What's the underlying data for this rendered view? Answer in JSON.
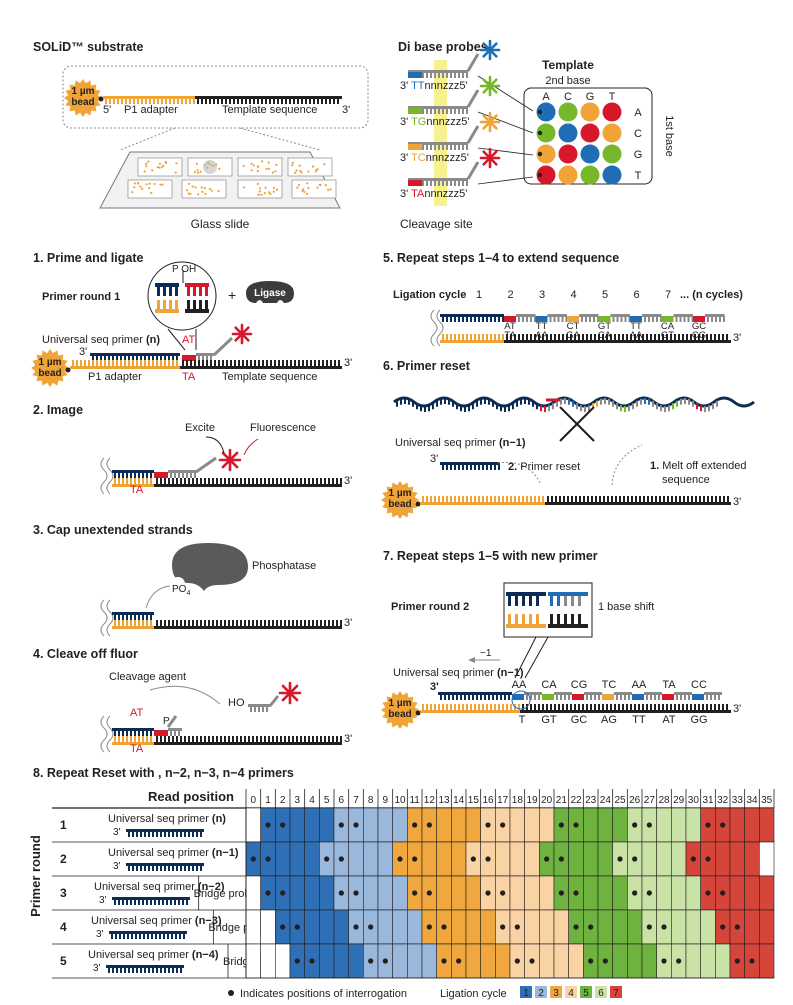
{
  "colors": {
    "navy": "#0d2c54",
    "orange": "#f0a336",
    "dark": "#231f20",
    "grey": "#8a8a8a",
    "red": "#d7182a",
    "blue": "#1f6db5",
    "green": "#77b82a",
    "cycle": [
      "#2f6fb5",
      "#9ab7dc",
      "#f0a83e",
      "#f9d3a3",
      "#6eb33f",
      "#c9e3a6",
      "#d6453a"
    ]
  },
  "substrate": {
    "title": "SOLiD™ substrate",
    "bead": [
      "1 µm",
      "bead"
    ],
    "five_prime": "5'",
    "p1_adapter": "P1 adapter",
    "template_sequence": "Template sequence",
    "three_prime": "3'",
    "glass_slide": "Glass slide"
  },
  "probes": {
    "title": "Di base probes",
    "rows": [
      {
        "three": "3'",
        "pair": "TT",
        "rest": "nnnzzz5'",
        "star_color": "blue"
      },
      {
        "three": "3'",
        "pair": "TG",
        "rest": "nnnzzz5'",
        "star_color": "green"
      },
      {
        "three": "3'",
        "pair": "TC",
        "rest": "nnnzzz5'",
        "star_color": "orange"
      },
      {
        "three": "3'",
        "pair": "TA",
        "rest": "nnnzzz5'",
        "star_color": "red"
      }
    ],
    "cleavage_site": "Cleavage site"
  },
  "template": {
    "title": "Template",
    "second_base": "2nd base",
    "first_base": "1st base",
    "cols": [
      "A",
      "C",
      "G",
      "T"
    ],
    "rows": [
      "A",
      "C",
      "G",
      "T"
    ],
    "matrix": [
      [
        "blue",
        "green",
        "orange",
        "red"
      ],
      [
        "green",
        "blue",
        "red",
        "orange"
      ],
      [
        "orange",
        "red",
        "blue",
        "green"
      ],
      [
        "red",
        "orange",
        "green",
        "blue"
      ]
    ]
  },
  "step1": {
    "title": "1. Prime and ligate",
    "primer_round": "Primer round 1",
    "p_oh": "P OH",
    "plus": "+",
    "ligase": "Ligase",
    "universal_primer": "Universal seq primer",
    "primer_n": "(n)",
    "three_prime": "3'",
    "at": "AT",
    "ta": "TA",
    "bead": [
      "1 µm",
      "bead"
    ],
    "p1_adapter": "P1 adapter",
    "template_sequence": "Template sequence",
    "end_three": "3'"
  },
  "step2": {
    "title": "2. Image",
    "excite": "Excite",
    "fluorescence": "Fluorescence",
    "ta": "TA",
    "end_three": "3'"
  },
  "step3": {
    "title": "3. Cap unextended strands",
    "phosphatase": "Phosphatase",
    "po4": "PO",
    "po4_sub": "4",
    "end_three": "3'"
  },
  "step4": {
    "title": "4. Cleave off fluor",
    "cleavage_agent": "Cleavage agent",
    "ho": "HO",
    "at": "AT",
    "p": "P",
    "ta": "TA",
    "end_three": "3'"
  },
  "step5": {
    "title": "5. Repeat steps 1–4 to extend sequence",
    "ligation_cycle": "Ligation cycle",
    "cycles": [
      "1",
      "2",
      "3",
      "4",
      "5",
      "6",
      "7"
    ],
    "more": "... (n cycles)",
    "top_pairs": [
      "AT",
      "TT",
      "CT",
      "GT",
      "TT",
      "CA",
      "GC"
    ],
    "bottom_pairs": [
      "TA",
      "AA",
      "GA",
      "CA",
      "AA",
      "GT",
      "CG"
    ],
    "end_three": "3'"
  },
  "step6": {
    "title": "6. Primer reset",
    "universal_primer": "Universal seq primer",
    "primer_n": "(n−1)",
    "three_prime": "3'",
    "reset_num": "2.",
    "reset_label": "Primer reset",
    "melt_num": "1.",
    "melt_label": [
      "Melt off extended",
      "sequence"
    ],
    "bead": [
      "1 µm",
      "bead"
    ],
    "end_three": "3'"
  },
  "step7": {
    "title": "7. Repeat steps 1–5 with new primer",
    "primer_round": "Primer round 2",
    "base_shift": "1 base shift",
    "minus_one": "−1",
    "universal_primer": "Universal seq primer",
    "primer_n": "(n−1)",
    "three_prime": "3'",
    "top_pairs": [
      "AA",
      "CA",
      "CG",
      "TC",
      "AA",
      "TA",
      "CC"
    ],
    "bottom_pairs": [
      "T",
      "GT",
      "GC",
      "AG",
      "TT",
      "AT",
      "GG"
    ],
    "bead": [
      "1 µm",
      "bead"
    ],
    "end_three": "3'"
  },
  "step8": {
    "title": "8. Repeat Reset with , n−2, n−3, n−4 primers",
    "read_position": "Read position",
    "positions": [
      "0",
      "1",
      "2",
      "3",
      "4",
      "5",
      "6",
      "7",
      "8",
      "9",
      "10",
      "11",
      "12",
      "13",
      "14",
      "15",
      "16",
      "17",
      "18",
      "19",
      "20",
      "21",
      "22",
      "23",
      "24",
      "25",
      "26",
      "27",
      "28",
      "29",
      "30",
      "31",
      "32",
      "33",
      "34",
      "35"
    ],
    "axis_label": "Primer round",
    "rounds": [
      {
        "num": "1",
        "primer": "Universal seq primer",
        "n": "(n)",
        "three": "3'",
        "bridge": "",
        "offset": 0
      },
      {
        "num": "2",
        "primer": "Universal seq primer",
        "n": "(n−1)",
        "three": "3'",
        "bridge": "",
        "offset": -1
      },
      {
        "num": "3",
        "primer": "Universal seq primer",
        "n": "(n−2)",
        "three": "3'",
        "bridge": "Bridge probe",
        "offset": -2
      },
      {
        "num": "4",
        "primer": "Universal seq primer",
        "n": "(n−3)",
        "three": "3'",
        "bridge": "Bridge probe",
        "offset": -3
      },
      {
        "num": "5",
        "primer": "Universal seq primer",
        "n": "(n−4)",
        "three": "3'",
        "bridge": "Bridge probe",
        "offset": -4
      }
    ],
    "legend_dot": "Indicates positions of interrogation",
    "legend_cycle": "Ligation cycle",
    "legend_numbers": [
      "1",
      "2",
      "3",
      "4",
      "5",
      "6",
      "7"
    ]
  }
}
